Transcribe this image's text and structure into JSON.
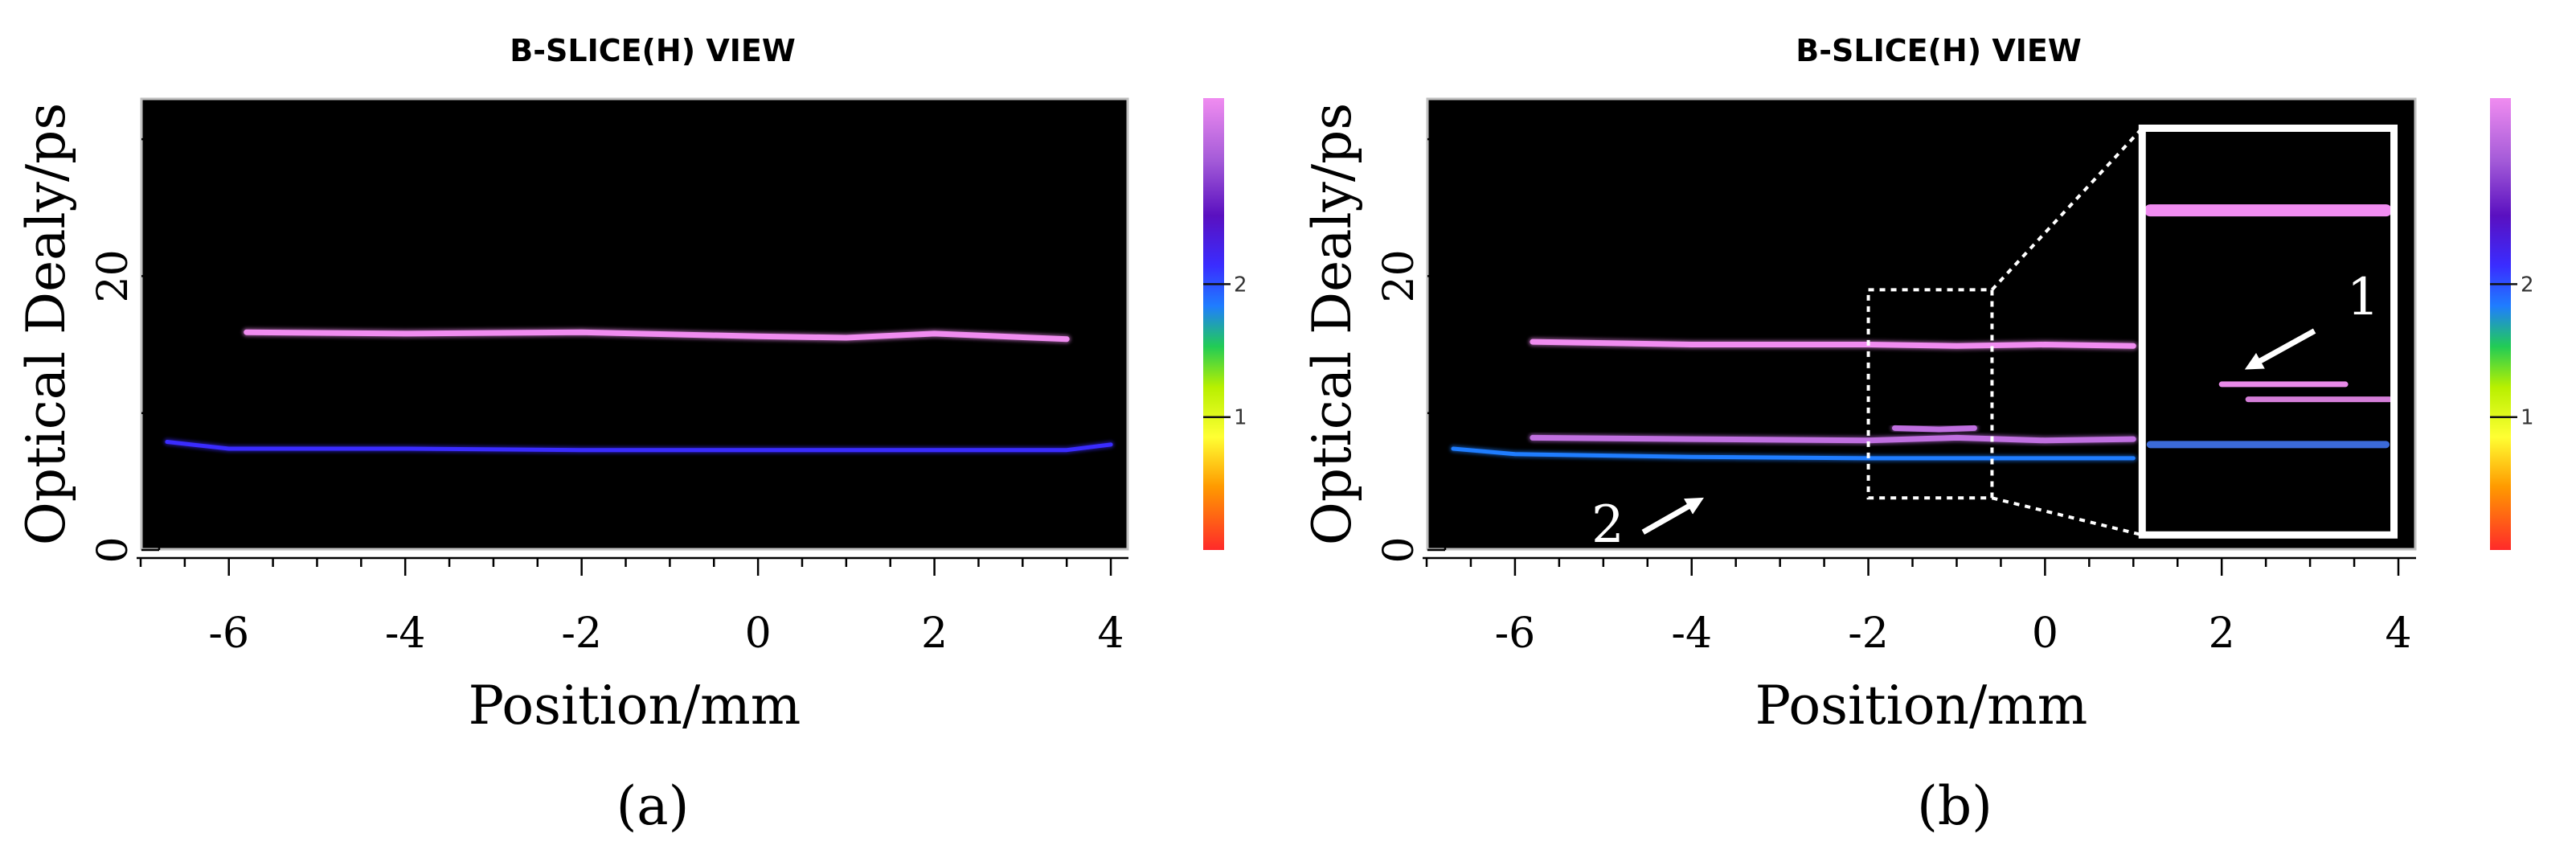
{
  "chart_data": [
    {
      "type": "heatmap",
      "title": "B-SLICE(H) VIEW",
      "caption": "(a)",
      "xlabel": "Position/mm",
      "ylabel": "Optical Dealy/ps",
      "xlim": [
        -7,
        4.2
      ],
      "ylim": [
        0,
        33
      ],
      "xticks": [
        "-6",
        "-4",
        "-2",
        "0",
        "2",
        "4"
      ],
      "yticks": [
        "0",
        "20"
      ],
      "colorbar": {
        "ticks": [
          "1",
          "2"
        ],
        "range": [
          0,
          3.4
        ]
      },
      "traces": [
        {
          "x": [
            -5.8,
            -4,
            -2,
            0,
            1,
            2,
            3.5
          ],
          "y": [
            15.9,
            15.8,
            15.9,
            15.6,
            15.5,
            15.8,
            15.4
          ],
          "intensity": 3.2
        },
        {
          "x": [
            -6.7,
            -6,
            -4,
            -2,
            0,
            2,
            3.5,
            4
          ],
          "y": [
            7.9,
            7.4,
            7.4,
            7.3,
            7.3,
            7.3,
            7.3,
            7.7
          ],
          "intensity": 2.1
        }
      ]
    },
    {
      "type": "heatmap",
      "title": "B-SLICE(H) VIEW",
      "caption": "(b)",
      "xlabel": "Position/mm",
      "ylabel": "Optical Dealy/ps",
      "xlim": [
        -7,
        4.2
      ],
      "ylim": [
        0,
        33
      ],
      "xticks": [
        "-6",
        "-4",
        "-2",
        "0",
        "2",
        "4"
      ],
      "yticks": [
        "0",
        "20"
      ],
      "colorbar": {
        "ticks": [
          "1",
          "2"
        ],
        "range": [
          0,
          3.4
        ]
      },
      "traces": [
        {
          "x": [
            -5.8,
            -4,
            -2,
            -1,
            0,
            1
          ],
          "y": [
            15.2,
            15.0,
            15.0,
            14.9,
            15.0,
            14.9
          ],
          "intensity": 3.2
        },
        {
          "x": [
            -5.8,
            -4,
            -2,
            -1,
            0,
            1
          ],
          "y": [
            8.2,
            8.1,
            8.0,
            8.2,
            8.0,
            8.1
          ],
          "intensity": 3.0
        },
        {
          "x": [
            -1.7,
            -1.2,
            -0.8
          ],
          "y": [
            8.9,
            8.8,
            8.9
          ],
          "intensity": 3.0
        },
        {
          "x": [
            -6.7,
            -6,
            -4,
            -2,
            0,
            1
          ],
          "y": [
            7.4,
            7.0,
            6.8,
            6.7,
            6.7,
            6.7
          ],
          "intensity": 2.0
        }
      ],
      "annotations": [
        {
          "text": "1"
        },
        {
          "text": "2"
        }
      ]
    }
  ]
}
